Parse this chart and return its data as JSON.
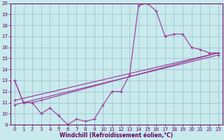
{
  "title": "",
  "xlabel": "Windchill (Refroidissement éolien,°C)",
  "ylabel": "",
  "xlim": [
    -0.5,
    23.5
  ],
  "ylim": [
    9,
    20
  ],
  "yticks": [
    9,
    10,
    11,
    12,
    13,
    14,
    15,
    16,
    17,
    18,
    19,
    20
  ],
  "xticks": [
    0,
    1,
    2,
    3,
    4,
    5,
    6,
    7,
    8,
    9,
    10,
    11,
    12,
    13,
    14,
    15,
    16,
    17,
    18,
    19,
    20,
    21,
    22,
    23
  ],
  "bg_color": "#c8eaec",
  "line_color": "#993399",
  "grid_color": "#99bbcc",
  "series": [
    {
      "x": [
        0,
        1,
        2,
        3,
        4,
        5,
        6,
        7,
        8,
        9,
        10,
        11,
        12,
        13,
        14,
        15,
        16,
        17,
        18,
        19,
        20,
        21,
        22,
        23
      ],
      "y": [
        13.0,
        11.0,
        11.0,
        10.0,
        10.5,
        9.8,
        9.0,
        9.5,
        9.3,
        9.5,
        10.8,
        12.0,
        12.0,
        13.5,
        19.8,
        20.0,
        19.3,
        17.0,
        17.2,
        17.2,
        16.0,
        15.8,
        15.5,
        15.5
      ]
    },
    {
      "x": [
        0,
        1,
        2,
        3,
        23
      ],
      "y": [
        13.0,
        11.0,
        11.0,
        11.2,
        15.5
      ]
    },
    {
      "x": [
        0,
        23
      ],
      "y": [
        11.2,
        15.5
      ]
    },
    {
      "x": [
        0,
        23
      ],
      "y": [
        10.8,
        15.3
      ]
    }
  ],
  "xlabel_fontsize": 5.5,
  "tick_fontsize": 5.0,
  "tick_color": "#660066",
  "spine_color": "#660066"
}
